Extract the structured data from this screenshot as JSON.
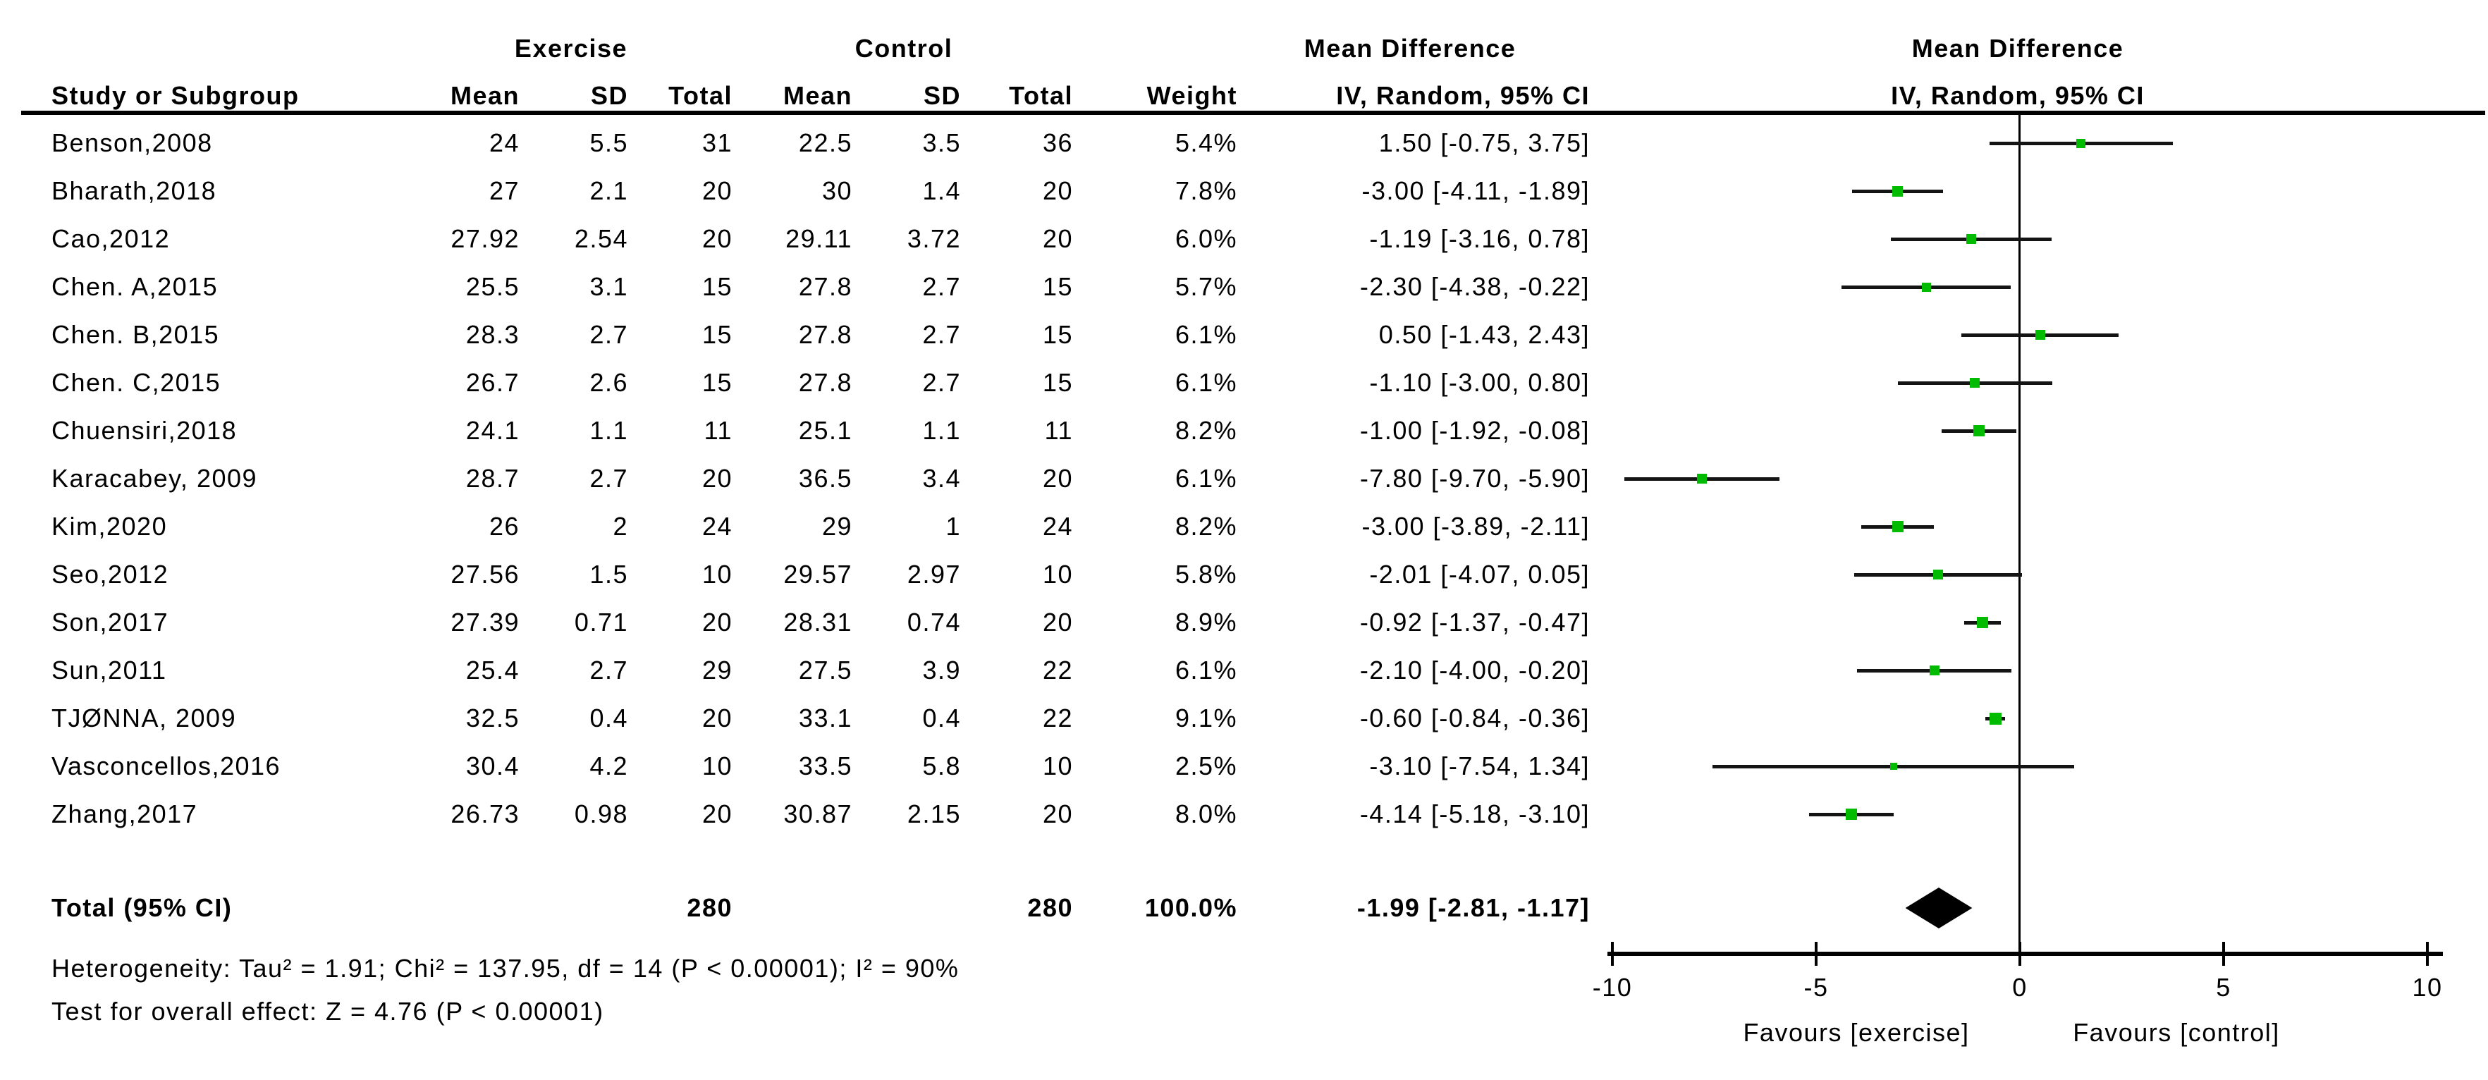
{
  "colors": {
    "marker_green": "#00BB00",
    "diamond_black": "#000000",
    "line_black": "#000000",
    "background": "#FFFFFF"
  },
  "header": {
    "group1": "Exercise",
    "group2": "Control",
    "effect_table": "Mean Difference",
    "effect_plot": "Mean Difference",
    "col_study": "Study or Subgroup",
    "col_mean": "Mean",
    "col_sd": "SD",
    "col_total": "Total",
    "col_weight": "Weight",
    "col_ci_table": "IV, Random, 95% CI",
    "col_ci_plot": "IV, Random, 95% CI"
  },
  "studies": [
    {
      "name": "Benson,2008",
      "e_mean": "24",
      "e_sd": "5.5",
      "e_total": "31",
      "c_mean": "22.5",
      "c_sd": "3.5",
      "c_total": "36",
      "weight": "5.4%",
      "ci_text": "1.50 [-0.75, 3.75]",
      "md": 1.5,
      "lo": -0.75,
      "hi": 3.75,
      "w": 5.4
    },
    {
      "name": "Bharath,2018",
      "e_mean": "27",
      "e_sd": "2.1",
      "e_total": "20",
      "c_mean": "30",
      "c_sd": "1.4",
      "c_total": "20",
      "weight": "7.8%",
      "ci_text": "-3.00 [-4.11, -1.89]",
      "md": -3.0,
      "lo": -4.11,
      "hi": -1.89,
      "w": 7.8
    },
    {
      "name": "Cao,2012",
      "e_mean": "27.92",
      "e_sd": "2.54",
      "e_total": "20",
      "c_mean": "29.11",
      "c_sd": "3.72",
      "c_total": "20",
      "weight": "6.0%",
      "ci_text": "-1.19 [-3.16, 0.78]",
      "md": -1.19,
      "lo": -3.16,
      "hi": 0.78,
      "w": 6.0
    },
    {
      "name": "Chen. A,2015",
      "e_mean": "25.5",
      "e_sd": "3.1",
      "e_total": "15",
      "c_mean": "27.8",
      "c_sd": "2.7",
      "c_total": "15",
      "weight": "5.7%",
      "ci_text": "-2.30 [-4.38, -0.22]",
      "md": -2.3,
      "lo": -4.38,
      "hi": -0.22,
      "w": 5.7
    },
    {
      "name": "Chen. B,2015",
      "e_mean": "28.3",
      "e_sd": "2.7",
      "e_total": "15",
      "c_mean": "27.8",
      "c_sd": "2.7",
      "c_total": "15",
      "weight": "6.1%",
      "ci_text": "0.50 [-1.43, 2.43]",
      "md": 0.5,
      "lo": -1.43,
      "hi": 2.43,
      "w": 6.1
    },
    {
      "name": "Chen. C,2015",
      "e_mean": "26.7",
      "e_sd": "2.6",
      "e_total": "15",
      "c_mean": "27.8",
      "c_sd": "2.7",
      "c_total": "15",
      "weight": "6.1%",
      "ci_text": "-1.10 [-3.00, 0.80]",
      "md": -1.1,
      "lo": -3.0,
      "hi": 0.8,
      "w": 6.1
    },
    {
      "name": "Chuensiri,2018",
      "e_mean": "24.1",
      "e_sd": "1.1",
      "e_total": "11",
      "c_mean": "25.1",
      "c_sd": "1.1",
      "c_total": "11",
      "weight": "8.2%",
      "ci_text": "-1.00 [-1.92, -0.08]",
      "md": -1.0,
      "lo": -1.92,
      "hi": -0.08,
      "w": 8.2
    },
    {
      "name": "Karacabey, 2009",
      "e_mean": "28.7",
      "e_sd": "2.7",
      "e_total": "20",
      "c_mean": "36.5",
      "c_sd": "3.4",
      "c_total": "20",
      "weight": "6.1%",
      "ci_text": "-7.80 [-9.70, -5.90]",
      "md": -7.8,
      "lo": -9.7,
      "hi": -5.9,
      "w": 6.1
    },
    {
      "name": "Kim,2020",
      "e_mean": "26",
      "e_sd": "2",
      "e_total": "24",
      "c_mean": "29",
      "c_sd": "1",
      "c_total": "24",
      "weight": "8.2%",
      "ci_text": "-3.00 [-3.89, -2.11]",
      "md": -3.0,
      "lo": -3.89,
      "hi": -2.11,
      "w": 8.2
    },
    {
      "name": "Seo,2012",
      "e_mean": "27.56",
      "e_sd": "1.5",
      "e_total": "10",
      "c_mean": "29.57",
      "c_sd": "2.97",
      "c_total": "10",
      "weight": "5.8%",
      "ci_text": "-2.01 [-4.07, 0.05]",
      "md": -2.01,
      "lo": -4.07,
      "hi": 0.05,
      "w": 5.8
    },
    {
      "name": "Son,2017",
      "e_mean": "27.39",
      "e_sd": "0.71",
      "e_total": "20",
      "c_mean": "28.31",
      "c_sd": "0.74",
      "c_total": "20",
      "weight": "8.9%",
      "ci_text": "-0.92 [-1.37, -0.47]",
      "md": -0.92,
      "lo": -1.37,
      "hi": -0.47,
      "w": 8.9
    },
    {
      "name": "Sun,2011",
      "e_mean": "25.4",
      "e_sd": "2.7",
      "e_total": "29",
      "c_mean": "27.5",
      "c_sd": "3.9",
      "c_total": "22",
      "weight": "6.1%",
      "ci_text": "-2.10 [-4.00, -0.20]",
      "md": -2.1,
      "lo": -4.0,
      "hi": -0.2,
      "w": 6.1
    },
    {
      "name": "TJØNNA, 2009",
      "e_mean": "32.5",
      "e_sd": "0.4",
      "e_total": "20",
      "c_mean": "33.1",
      "c_sd": "0.4",
      "c_total": "22",
      "weight": "9.1%",
      "ci_text": "-0.60 [-0.84, -0.36]",
      "md": -0.6,
      "lo": -0.84,
      "hi": -0.36,
      "w": 9.1
    },
    {
      "name": "Vasconcellos,2016",
      "e_mean": "30.4",
      "e_sd": "4.2",
      "e_total": "10",
      "c_mean": "33.5",
      "c_sd": "5.8",
      "c_total": "10",
      "weight": "2.5%",
      "ci_text": "-3.10 [-7.54, 1.34]",
      "md": -3.1,
      "lo": -7.54,
      "hi": 1.34,
      "w": 2.5
    },
    {
      "name": "Zhang,2017",
      "e_mean": "26.73",
      "e_sd": "0.98",
      "e_total": "20",
      "c_mean": "30.87",
      "c_sd": "2.15",
      "c_total": "20",
      "weight": "8.0%",
      "ci_text": "-4.14 [-5.18, -3.10]",
      "md": -4.14,
      "lo": -5.18,
      "hi": -3.1,
      "w": 8.0
    }
  ],
  "total": {
    "label": "Total (95% CI)",
    "e_total": "280",
    "c_total": "280",
    "weight": "100.0%",
    "ci_text": "-1.99 [-2.81, -1.17]",
    "md": -1.99,
    "lo": -2.81,
    "hi": -1.17
  },
  "stats": {
    "heterogeneity": "Heterogeneity: Tau² = 1.91; Chi² = 137.95, df = 14 (P < 0.00001); I² = 90%",
    "overall_effect": "Test for overall effect: Z = 4.76 (P < 0.00001)"
  },
  "axis": {
    "ticks": [
      -10,
      -5,
      0,
      5,
      10
    ],
    "min": -10,
    "max": 10,
    "favours_left": "Favours [exercise]",
    "favours_right": "Favours [control]"
  },
  "chart_data": {
    "type": "scatter",
    "subtype": "forest-plot",
    "title": "Mean Difference  IV, Random, 95% CI",
    "xlabel": "Mean Difference",
    "xlim": [
      -10,
      10
    ],
    "xticks": [
      -10,
      -5,
      0,
      5,
      10
    ],
    "favours_left": "Favours [exercise]",
    "favours_right": "Favours [control]",
    "categories": [
      "Benson,2008",
      "Bharath,2018",
      "Cao,2012",
      "Chen. A,2015",
      "Chen. B,2015",
      "Chen. C,2015",
      "Chuensiri,2018",
      "Karacabey, 2009",
      "Kim,2020",
      "Seo,2012",
      "Son,2017",
      "Sun,2011",
      "TJØNNA, 2009",
      "Vasconcellos,2016",
      "Zhang,2017"
    ],
    "mean_difference": [
      1.5,
      -3.0,
      -1.19,
      -2.3,
      0.5,
      -1.1,
      -1.0,
      -7.8,
      -3.0,
      -2.01,
      -0.92,
      -2.1,
      -0.6,
      -3.1,
      -4.14
    ],
    "ci_low": [
      -0.75,
      -4.11,
      -3.16,
      -4.38,
      -1.43,
      -3.0,
      -1.92,
      -9.7,
      -3.89,
      -4.07,
      -1.37,
      -4.0,
      -0.84,
      -7.54,
      -5.18
    ],
    "ci_high": [
      3.75,
      -1.89,
      0.78,
      -0.22,
      2.43,
      0.8,
      -0.08,
      -5.9,
      -2.11,
      0.05,
      -0.47,
      -0.2,
      -0.36,
      1.34,
      -3.1
    ],
    "weights_pct": [
      5.4,
      7.8,
      6.0,
      5.7,
      6.1,
      6.1,
      8.2,
      6.1,
      8.2,
      5.8,
      8.9,
      6.1,
      9.1,
      2.5,
      8.0
    ],
    "pooled": {
      "mean_difference": -1.99,
      "ci_low": -2.81,
      "ci_high": -1.17,
      "weight_pct": 100.0
    }
  }
}
